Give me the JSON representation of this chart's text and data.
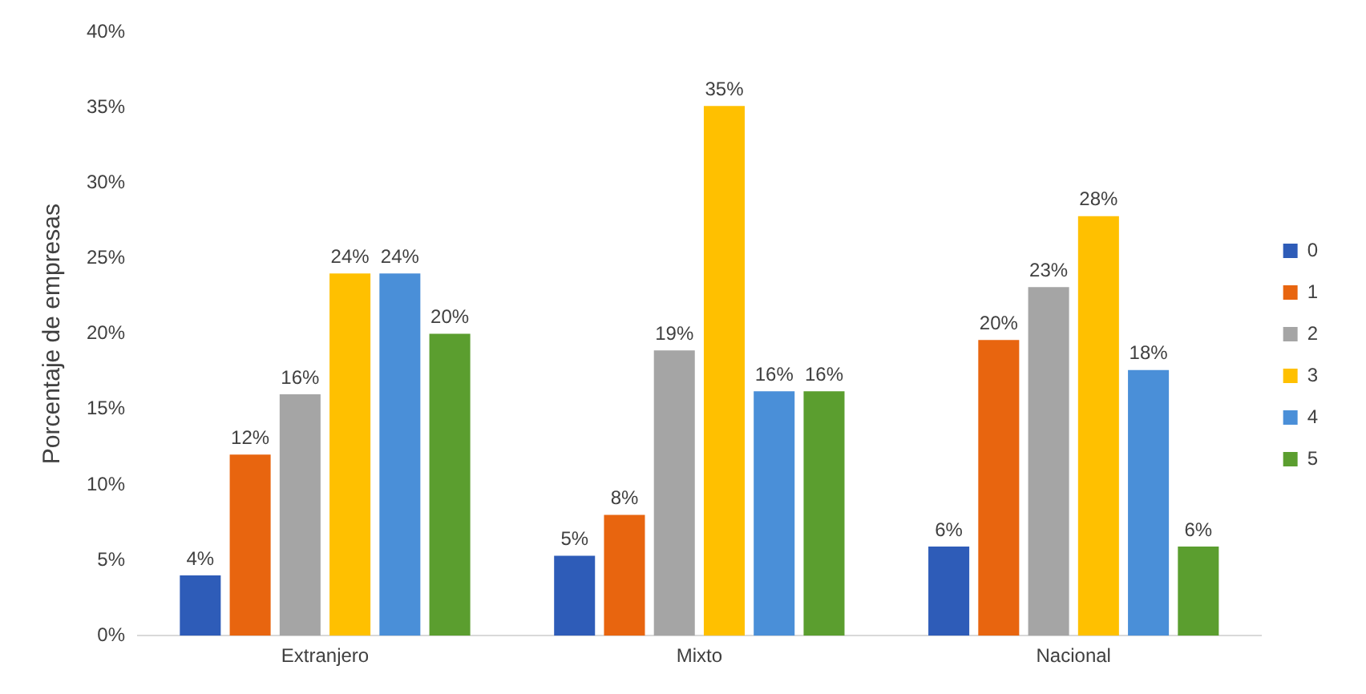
{
  "chart_data": {
    "type": "bar",
    "ylabel": "Porcentaje de empresas",
    "categories": [
      "Extranjero",
      "Mixto",
      "Nacional"
    ],
    "series": [
      {
        "name": "0",
        "color": "#2e5cb8",
        "values": [
          4,
          5.3,
          5.9
        ],
        "value_labels": [
          "4%",
          "5%",
          "6%"
        ]
      },
      {
        "name": "1",
        "color": "#e8650f",
        "values": [
          12,
          8,
          19.6
        ],
        "value_labels": [
          "12%",
          "8%",
          "20%"
        ]
      },
      {
        "name": "2",
        "color": "#a5a5a5",
        "values": [
          16,
          18.9,
          23.1
        ],
        "value_labels": [
          "16%",
          "19%",
          "23%"
        ]
      },
      {
        "name": "3",
        "color": "#ffc000",
        "values": [
          24,
          35.1,
          27.8
        ],
        "value_labels": [
          "24%",
          "35%",
          "28%"
        ]
      },
      {
        "name": "4",
        "color": "#4a8fd8",
        "values": [
          24,
          16.2,
          17.6
        ],
        "value_labels": [
          "24%",
          "16%",
          "18%"
        ]
      },
      {
        "name": "5",
        "color": "#5b9e2f",
        "values": [
          20,
          16.2,
          5.9
        ],
        "value_labels": [
          "20%",
          "16%",
          "6%"
        ]
      }
    ],
    "ylim": [
      0,
      40
    ],
    "yticks": [
      {
        "value": 0,
        "label": "0%"
      },
      {
        "value": 5,
        "label": "5%"
      },
      {
        "value": 10,
        "label": "10%"
      },
      {
        "value": 15,
        "label": "15%"
      },
      {
        "value": 20,
        "label": "20%"
      },
      {
        "value": 25,
        "label": "25%"
      },
      {
        "value": 30,
        "label": "30%"
      },
      {
        "value": 35,
        "label": "35%"
      },
      {
        "value": 40,
        "label": "40%"
      }
    ],
    "grid": false,
    "legend": "right"
  }
}
